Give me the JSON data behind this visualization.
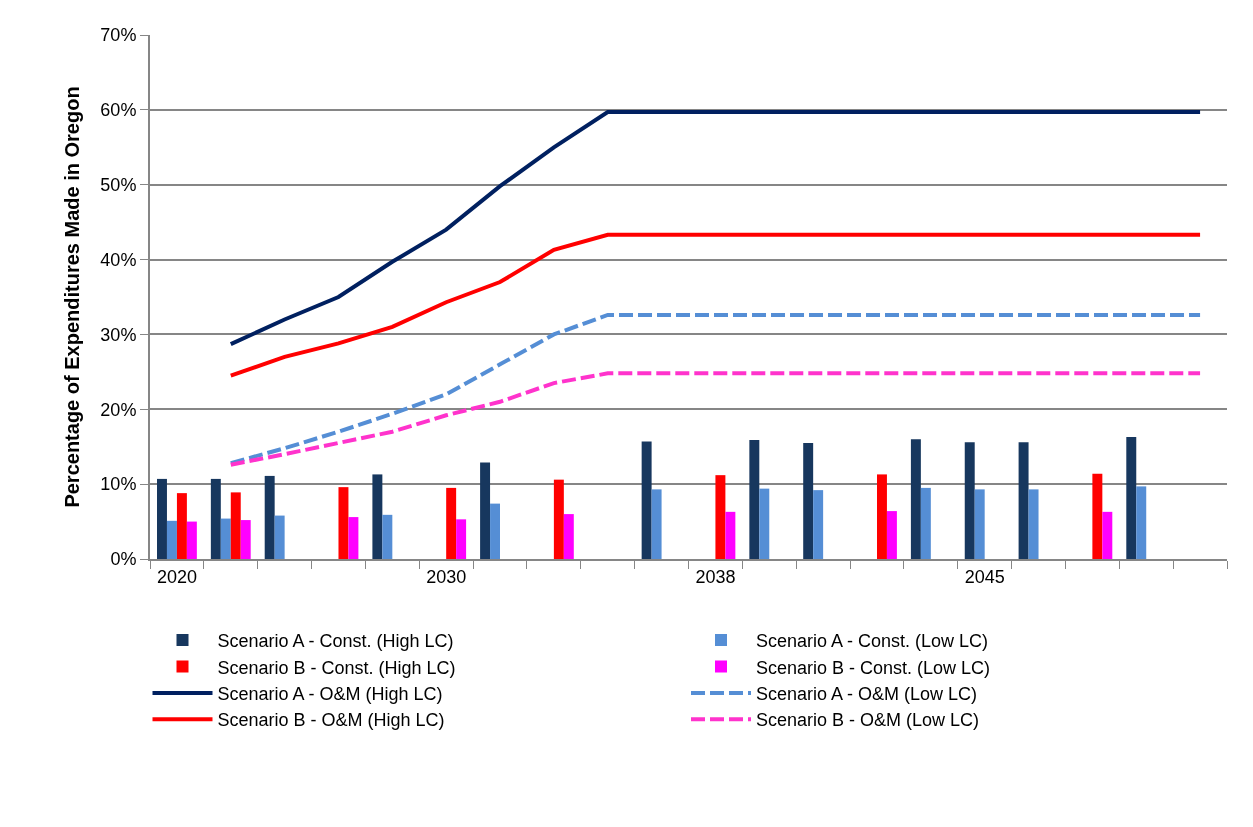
{
  "chart_data": {
    "type": "bar",
    "ylabel": "Percentage of Expenditures Made in Oregon",
    "categories": [
      "2020",
      null,
      null,
      null,
      null,
      "2030",
      null,
      null,
      null,
      null,
      "2038",
      null,
      null,
      null,
      null,
      "2045",
      null,
      null,
      null,
      null
    ],
    "ylim": [
      0,
      70
    ],
    "yticks": [
      {
        "value": 0,
        "label": "0%"
      },
      {
        "value": 10,
        "label": "10%"
      },
      {
        "value": 20,
        "label": "20%"
      },
      {
        "value": 30,
        "label": "30%"
      },
      {
        "value": 40,
        "label": "40%"
      },
      {
        "value": 50,
        "label": "50%"
      },
      {
        "value": 60,
        "label": "60%"
      },
      {
        "value": 70,
        "label": "70%"
      }
    ],
    "grid": "y",
    "legend": "bottom",
    "series": [
      {
        "name": "Scenario A - Const. (High LC)",
        "color": "#17375e",
        "values": [
          10.7,
          10.7,
          11.1,
          null,
          11.3,
          null,
          12.9,
          null,
          null,
          15.7,
          null,
          15.9,
          15.5,
          null,
          16.0,
          15.6,
          15.6,
          null,
          16.3,
          null
        ]
      },
      {
        "name": "Scenario A - Const. (Low LC)",
        "color": "#558ed5",
        "values": [
          5.1,
          5.4,
          5.8,
          null,
          5.9,
          null,
          7.4,
          null,
          null,
          9.3,
          null,
          9.4,
          9.2,
          null,
          9.5,
          9.3,
          9.3,
          null,
          9.7,
          null
        ]
      },
      {
        "name": "Scenario B - Const. (High LC)",
        "color": "#ff0000",
        "values": [
          8.8,
          8.9,
          null,
          9.6,
          null,
          9.5,
          null,
          10.6,
          null,
          null,
          11.2,
          null,
          null,
          11.3,
          null,
          null,
          null,
          11.4,
          null,
          null
        ]
      },
      {
        "name": "Scenario B - Const. (Low LC)",
        "color": "#ff00ff",
        "values": [
          5.0,
          5.2,
          null,
          5.6,
          null,
          5.3,
          null,
          6.0,
          null,
          null,
          6.3,
          null,
          null,
          6.4,
          null,
          null,
          null,
          6.3,
          null,
          null
        ]
      },
      {
        "name": "Scenario A - O&M (High LC)",
        "type": "line",
        "line_style": "solid",
        "color": "#002060",
        "values": [
          null,
          28.7,
          32.0,
          35.0,
          39.7,
          44.0,
          49.8,
          55.0,
          59.7,
          59.7,
          59.7,
          59.7,
          59.7,
          59.7,
          59.7,
          59.7,
          59.7,
          59.7,
          59.7,
          59.7
        ]
      },
      {
        "name": "Scenario A - O&M (Low LC)",
        "type": "line",
        "line_style": "dashed",
        "color": "#558ed5",
        "values": [
          null,
          12.8,
          14.8,
          17.0,
          19.4,
          22.0,
          26.0,
          30.0,
          32.6,
          32.6,
          32.6,
          32.6,
          32.6,
          32.6,
          32.6,
          32.6,
          32.6,
          32.6,
          32.6,
          32.6
        ]
      },
      {
        "name": "Scenario B - O&M (High LC)",
        "type": "line",
        "line_style": "solid",
        "color": "#ff0000",
        "values": [
          null,
          24.5,
          27.0,
          28.8,
          31.0,
          34.3,
          37.0,
          41.3,
          43.3,
          43.3,
          43.3,
          43.3,
          43.3,
          43.3,
          43.3,
          43.3,
          43.3,
          43.3,
          43.3,
          43.3
        ]
      },
      {
        "name": "Scenario B - O&M (Low LC)",
        "type": "line",
        "line_style": "dashed",
        "color": "#ff33cc",
        "values": [
          null,
          12.6,
          14.0,
          15.5,
          17.0,
          19.2,
          21.0,
          23.5,
          24.8,
          24.8,
          24.8,
          24.8,
          24.8,
          24.8,
          24.8,
          24.8,
          24.8,
          24.8,
          24.8,
          24.8
        ]
      }
    ]
  }
}
